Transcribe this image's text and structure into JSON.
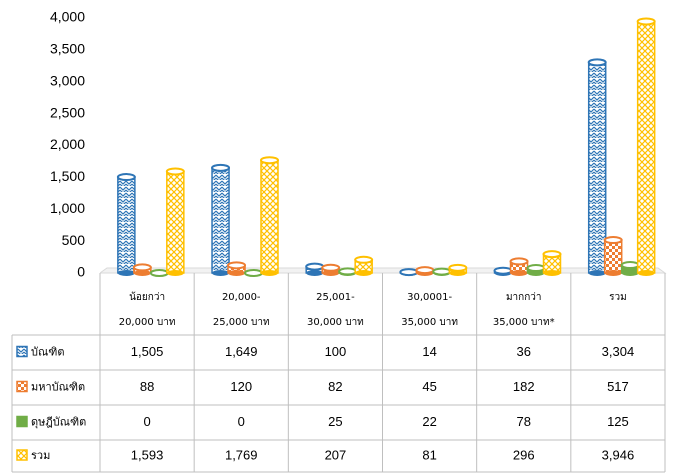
{
  "chart_data": {
    "type": "bar",
    "categories": [
      [
        "น้อยกว่า",
        "20,000 บาท"
      ],
      [
        "20,000-",
        "25,000 บาท"
      ],
      [
        "25,001-",
        "30,000 บาท"
      ],
      [
        "30,0001-",
        "35,000 บาท"
      ],
      [
        "มากกว่า",
        "35,000 บาท*"
      ],
      [
        "รวม"
      ]
    ],
    "series": [
      {
        "name": "บัณฑิต",
        "color": "#2e75b6",
        "values": [
          1505,
          1649,
          100,
          14,
          36,
          3304
        ],
        "value_labels": [
          "1,505",
          "1,649",
          "100",
          "14",
          "36",
          "3,304"
        ]
      },
      {
        "name": "มหาบัณฑิต",
        "color": "#ed7d31",
        "values": [
          88,
          120,
          82,
          45,
          182,
          517
        ],
        "value_labels": [
          "88",
          "120",
          "82",
          "45",
          "182",
          "517"
        ]
      },
      {
        "name": "ดุษฎีบัณฑิต",
        "color": "#70ad47",
        "values": [
          0,
          0,
          25,
          22,
          78,
          125
        ],
        "value_labels": [
          "0",
          "0",
          "25",
          "22",
          "78",
          "125"
        ]
      },
      {
        "name": "รวม",
        "color": "#ffc000",
        "values": [
          1593,
          1769,
          207,
          81,
          296,
          3946
        ],
        "value_labels": [
          "1,593",
          "1,769",
          "207",
          "81",
          "296",
          "3,946"
        ]
      }
    ],
    "ylim": [
      0,
      4000
    ],
    "yticks": [
      0,
      500,
      {
        "value": 1000,
        "label": "1,000"
      },
      {
        "value": 1500,
        "label": "1,500"
      },
      {
        "value": 2000,
        "label": "2,000"
      },
      {
        "value": 2500,
        "label": "2,500"
      },
      {
        "value": 3000,
        "label": "3,000"
      },
      {
        "value": 3500,
        "label": "3,500"
      },
      {
        "value": 4000,
        "label": "4,000"
      }
    ],
    "grid": false
  }
}
